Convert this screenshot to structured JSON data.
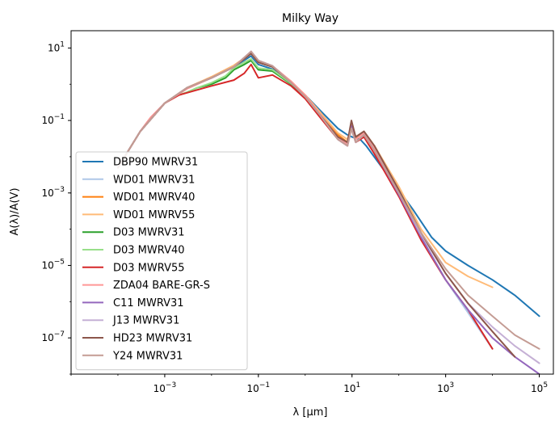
{
  "chart_data": {
    "type": "line",
    "title": "Milky Way",
    "xlabel": "λ [μm]",
    "ylabel": "A(λ)/A(V)",
    "xscale": "log",
    "yscale": "log",
    "xlim": [
      1e-05,
      200000.0
    ],
    "ylim": [
      1e-08,
      30
    ],
    "x_ticks": [
      {
        "value": 0.001,
        "base": "10",
        "exp": "−3"
      },
      {
        "value": 0.1,
        "base": "10",
        "exp": "−1"
      },
      {
        "value": 10,
        "base": "10",
        "exp": "1"
      },
      {
        "value": 1000,
        "base": "10",
        "exp": "3"
      },
      {
        "value": 100000,
        "base": "10",
        "exp": "5"
      }
    ],
    "y_ticks": [
      {
        "value": 10,
        "base": "10",
        "exp": "1"
      },
      {
        "value": 0.1,
        "base": "10",
        "exp": "−1"
      },
      {
        "value": 0.001,
        "base": "10",
        "exp": "−3"
      },
      {
        "value": 1e-05,
        "base": "10",
        "exp": "−5"
      },
      {
        "value": 1e-07,
        "base": "10",
        "exp": "−7"
      }
    ],
    "grid": false,
    "legend_position": "lower-left",
    "series": [
      {
        "name": "DBP90  MWRV31",
        "color": "#1f77b4",
        "x": [
          0.0001,
          0.0003,
          0.001,
          0.003,
          0.01,
          0.03,
          0.07,
          0.1,
          0.2,
          0.5,
          1,
          2,
          5,
          8,
          10,
          15,
          20,
          50,
          100,
          200,
          500,
          1000,
          3000,
          10000,
          30000,
          100000
        ],
        "y": [
          0.005,
          0.05,
          0.3,
          0.8,
          1.5,
          3,
          6,
          3.5,
          2.6,
          1.1,
          0.5,
          0.2,
          0.06,
          0.04,
          0.035,
          0.03,
          0.02,
          0.004,
          0.0012,
          0.00035,
          6e-05,
          2.5e-05,
          1e-05,
          4e-06,
          1.5e-06,
          4e-07
        ]
      },
      {
        "name": "WD01  MWRV31",
        "color": "#aec7e8",
        "x": [
          0.0001,
          0.0003,
          0.001,
          0.003,
          0.01,
          0.03,
          0.07,
          0.1,
          0.2,
          0.5,
          1,
          2,
          5,
          8,
          9.7,
          12,
          18,
          30,
          100,
          300,
          1000,
          3000,
          10000
        ],
        "y": [
          0.005,
          0.05,
          0.3,
          0.8,
          1.5,
          3,
          7,
          4,
          3,
          1.1,
          0.45,
          0.15,
          0.03,
          0.02,
          0.06,
          0.025,
          0.04,
          0.015,
          0.001,
          6e-05,
          4e-06,
          5e-07,
          5e-08
        ]
      },
      {
        "name": "WD01  MWRV40",
        "color": "#ff7f0e",
        "x": [
          0.0001,
          0.0003,
          0.001,
          0.003,
          0.01,
          0.03,
          0.07,
          0.1,
          0.2,
          0.5,
          1,
          2,
          5,
          8,
          9.7,
          12,
          18,
          30,
          100
        ],
        "y": [
          0.005,
          0.05,
          0.3,
          0.8,
          1.6,
          3.3,
          7,
          4,
          3,
          1.2,
          0.5,
          0.18,
          0.04,
          0.025,
          0.07,
          0.03,
          0.05,
          0.02,
          0.0013
        ]
      },
      {
        "name": "WD01  MWRV55",
        "color": "#ffbb78",
        "x": [
          0.0001,
          0.0003,
          0.001,
          0.003,
          0.01,
          0.03,
          0.07,
          0.1,
          0.2,
          0.5,
          1,
          2,
          5,
          8,
          9.7,
          12,
          18,
          30,
          100,
          300,
          1000,
          3000,
          10000
        ],
        "y": [
          0.005,
          0.05,
          0.3,
          0.8,
          1.6,
          3.3,
          7,
          4,
          3,
          1.2,
          0.5,
          0.18,
          0.045,
          0.03,
          0.07,
          0.035,
          0.05,
          0.02,
          0.0015,
          0.0001,
          1.2e-05,
          5e-06,
          2.5e-06
        ]
      },
      {
        "name": "D03  MWRV31",
        "color": "#2ca02c",
        "x": [
          0.002,
          0.003,
          0.005,
          0.01,
          0.02,
          0.03,
          0.05,
          0.07,
          0.1,
          0.2,
          0.5,
          1
        ],
        "y": [
          0.5,
          0.6,
          0.8,
          1,
          1.5,
          2.5,
          3.5,
          4.5,
          2.5,
          2.3,
          1,
          0.45
        ]
      },
      {
        "name": "D03  MWRV40",
        "color": "#98df8a",
        "x": [
          0.002,
          0.003,
          0.005,
          0.01,
          0.02,
          0.03,
          0.05,
          0.07,
          0.1,
          0.2,
          0.5,
          1
        ],
        "y": [
          0.5,
          0.6,
          0.8,
          1.1,
          1.7,
          2.8,
          4,
          5,
          2.8,
          2.5,
          1.05,
          0.47
        ]
      },
      {
        "name": "D03  MWRV55",
        "color": "#d62728",
        "x": [
          0.0003,
          0.0005,
          0.001,
          0.002,
          0.005,
          0.01,
          0.03,
          0.05,
          0.07,
          0.1,
          0.2,
          0.5,
          1,
          2,
          5,
          8,
          9.7,
          12,
          18,
          30,
          100,
          300,
          1000,
          3000,
          10000
        ],
        "y": [
          0.05,
          0.12,
          0.3,
          0.5,
          0.7,
          0.9,
          1.3,
          2,
          3.5,
          1.5,
          1.8,
          0.9,
          0.4,
          0.13,
          0.03,
          0.02,
          0.06,
          0.025,
          0.035,
          0.012,
          0.0008,
          5e-05,
          4e-06,
          6e-07,
          5e-08
        ]
      },
      {
        "name": "ZDA04  BARE-GR-S",
        "color": "#ff9896",
        "x": [
          0.0003,
          0.0005,
          0.001,
          0.003,
          0.01,
          0.03,
          0.07,
          0.1,
          0.2,
          0.5,
          1,
          2,
          5,
          8,
          9.7,
          12,
          18,
          30,
          100
        ],
        "y": [
          0.05,
          0.12,
          0.3,
          0.75,
          1.5,
          3,
          8,
          4.2,
          3.2,
          1.2,
          0.5,
          0.16,
          0.035,
          0.022,
          0.08,
          0.03,
          0.045,
          0.018,
          0.0012
        ]
      },
      {
        "name": "C11  MWRV31",
        "color": "#9467bd",
        "x": [
          0.0001,
          0.0003,
          0.001,
          0.003,
          0.01,
          0.03,
          0.07,
          0.1,
          0.2,
          0.5,
          1,
          2,
          5,
          8,
          9.7,
          12,
          18,
          30,
          100,
          300,
          1000,
          3000,
          10000,
          30000,
          100000
        ],
        "y": [
          0.005,
          0.05,
          0.3,
          0.8,
          1.5,
          3,
          8,
          4.5,
          3.2,
          1.1,
          0.45,
          0.15,
          0.03,
          0.02,
          0.07,
          0.025,
          0.04,
          0.015,
          0.0009,
          6e-05,
          4e-06,
          6e-07,
          1e-07,
          3e-08,
          1e-08
        ]
      },
      {
        "name": "J13  MWRV31",
        "color": "#c5b0d5",
        "x": [
          0.0001,
          0.0003,
          0.001,
          0.003,
          0.01,
          0.03,
          0.07,
          0.1,
          0.2,
          0.5,
          1,
          2,
          5,
          8,
          9.7,
          12,
          18,
          30,
          100,
          300,
          1000,
          3000,
          10000,
          30000,
          100000
        ],
        "y": [
          0.005,
          0.05,
          0.3,
          0.8,
          1.5,
          3,
          7,
          4,
          3,
          1.1,
          0.45,
          0.15,
          0.03,
          0.02,
          0.06,
          0.025,
          0.04,
          0.015,
          0.001,
          7e-05,
          6e-06,
          9e-07,
          2e-07,
          6e-08,
          2e-08
        ]
      },
      {
        "name": "HD23  MWRV31",
        "color": "#8c564b",
        "x": [
          0.0001,
          0.0003,
          0.001,
          0.003,
          0.01,
          0.03,
          0.07,
          0.1,
          0.2,
          0.5,
          1,
          2,
          5,
          8,
          9.7,
          12,
          18,
          30,
          100,
          300,
          1000,
          3000,
          10000,
          30000
        ],
        "y": [
          0.005,
          0.05,
          0.3,
          0.8,
          1.5,
          3,
          7,
          4,
          3,
          1.1,
          0.45,
          0.15,
          0.035,
          0.025,
          0.1,
          0.035,
          0.05,
          0.02,
          0.0012,
          8e-05,
          6e-06,
          9e-07,
          1.5e-07,
          3e-08
        ]
      },
      {
        "name": "Y24  MWRV31",
        "color": "#c49c94",
        "x": [
          0.0001,
          0.0003,
          0.001,
          0.003,
          0.01,
          0.03,
          0.07,
          0.1,
          0.2,
          0.5,
          1,
          2,
          5,
          8,
          9.7,
          12,
          18,
          30,
          100,
          300,
          1000,
          3000,
          10000,
          30000,
          100000
        ],
        "y": [
          0.005,
          0.05,
          0.3,
          0.8,
          1.5,
          3,
          8,
          4.5,
          3.2,
          1.1,
          0.45,
          0.15,
          0.03,
          0.02,
          0.06,
          0.025,
          0.04,
          0.015,
          0.001,
          8e-05,
          8e-06,
          1.5e-06,
          4e-07,
          1.2e-07,
          5e-08
        ]
      }
    ]
  }
}
